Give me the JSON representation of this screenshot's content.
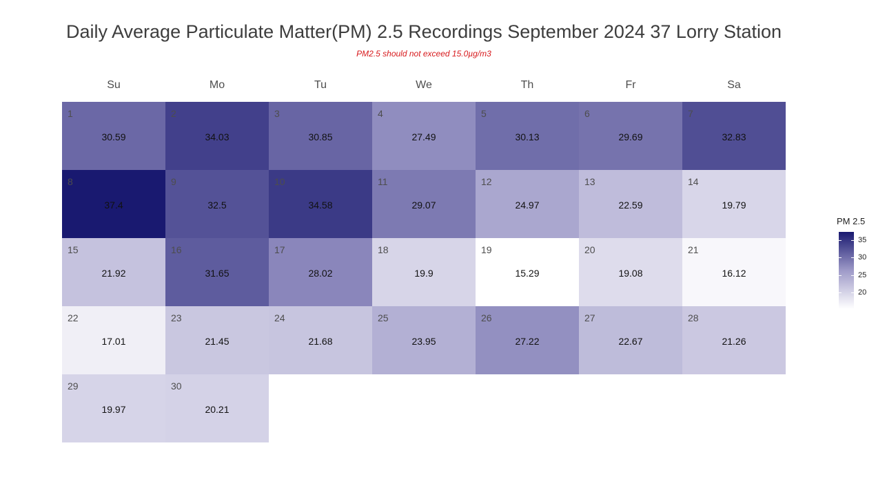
{
  "chart_data": {
    "type": "heatmap",
    "title": "Daily Average Particulate Matter(PM) 2.5 Recordings September 2024 37 Lorry Station",
    "subtitle": "PM2.5 should not exceed 15.0µg/m3",
    "weekdays": [
      "Su",
      "Mo",
      "Tu",
      "We",
      "Th",
      "Fr",
      "Sa"
    ],
    "first_weekday_index": 0,
    "days": [
      1,
      2,
      3,
      4,
      5,
      6,
      7,
      8,
      9,
      10,
      11,
      12,
      13,
      14,
      15,
      16,
      17,
      18,
      19,
      20,
      21,
      22,
      23,
      24,
      25,
      26,
      27,
      28,
      29,
      30
    ],
    "values": [
      30.59,
      34.03,
      30.85,
      27.49,
      30.13,
      29.69,
      32.83,
      37.4,
      32.5,
      34.58,
      29.07,
      24.97,
      22.59,
      19.79,
      21.92,
      31.65,
      28.02,
      19.9,
      15.29,
      19.08,
      16.12,
      17.01,
      21.45,
      21.68,
      23.95,
      27.22,
      22.67,
      21.26,
      19.97,
      20.21
    ],
    "legend": {
      "title": "PM 2.5",
      "ticks": [
        20,
        25,
        30,
        35
      ],
      "range": [
        15.29,
        37.4
      ],
      "color_low": "#ffffff",
      "color_high": "#191970"
    }
  }
}
